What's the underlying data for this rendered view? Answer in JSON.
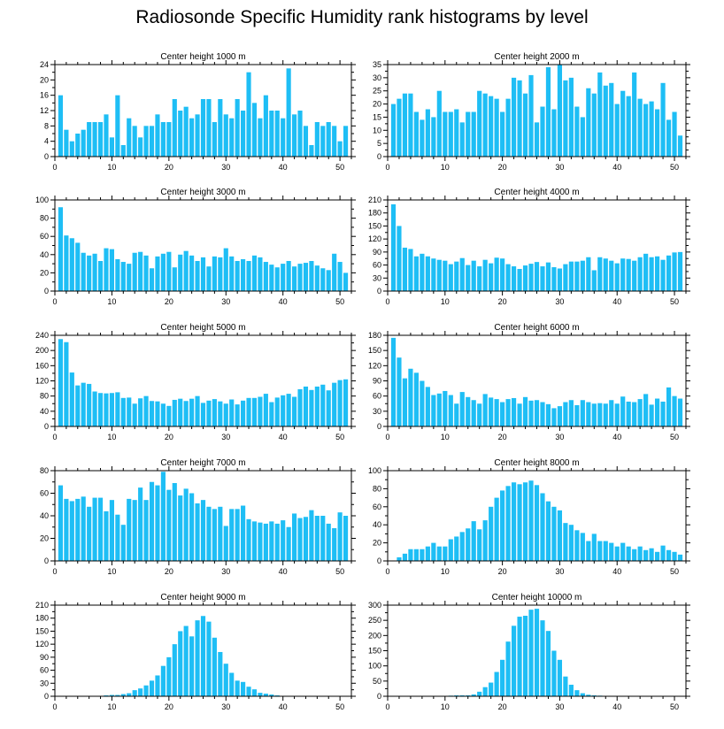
{
  "page_title": "Radiosonde Specific Humidity rank histograms by level",
  "colors": {
    "bar": "#1EBEF5",
    "axis": "#000000",
    "background": "#ffffff"
  },
  "chart_data": [
    {
      "type": "bar",
      "title": "Center height 1000 m",
      "xlabel": "",
      "ylabel": "",
      "xlim": [
        0,
        52
      ],
      "ylim": [
        0,
        24
      ],
      "xticks": [
        0,
        10,
        20,
        30,
        40,
        50
      ],
      "yticks": [
        0,
        4,
        8,
        12,
        16,
        20,
        24
      ],
      "x_start": 1,
      "values": [
        16,
        7,
        4,
        6,
        7,
        9,
        9,
        9,
        11,
        5,
        16,
        3,
        10,
        8,
        5,
        8,
        8,
        11,
        9,
        9,
        15,
        12,
        13,
        10,
        11,
        15,
        15,
        9,
        15,
        11,
        10,
        15,
        12,
        22,
        14,
        10,
        16,
        12,
        12,
        10,
        23,
        11,
        12,
        8,
        3,
        9,
        8,
        9,
        8,
        4,
        8
      ]
    },
    {
      "type": "bar",
      "title": "Center height 2000 m",
      "xlabel": "",
      "ylabel": "",
      "xlim": [
        0,
        52
      ],
      "ylim": [
        0,
        35
      ],
      "xticks": [
        0,
        10,
        20,
        30,
        40,
        50
      ],
      "yticks": [
        0,
        5,
        10,
        15,
        20,
        25,
        30,
        35
      ],
      "x_start": 1,
      "values": [
        20,
        22,
        24,
        24,
        17,
        14,
        18,
        15,
        25,
        17,
        17,
        18,
        13,
        17,
        17,
        25,
        24,
        23,
        22,
        17,
        22,
        30,
        29,
        24,
        31,
        13,
        19,
        34,
        18,
        35,
        29,
        30,
        19,
        15,
        26,
        24,
        32,
        27,
        28,
        20,
        25,
        23,
        32,
        22,
        20,
        21,
        18,
        28,
        14,
        17,
        8
      ]
    },
    {
      "type": "bar",
      "title": "Center height 3000 m",
      "xlabel": "",
      "ylabel": "",
      "xlim": [
        0,
        52
      ],
      "ylim": [
        0,
        100
      ],
      "xticks": [
        0,
        10,
        20,
        30,
        40,
        50
      ],
      "yticks": [
        0,
        20,
        40,
        60,
        80,
        100
      ],
      "x_start": 1,
      "values": [
        92,
        61,
        58,
        53,
        42,
        39,
        41,
        33,
        47,
        46,
        35,
        32,
        30,
        42,
        43,
        39,
        25,
        38,
        41,
        43,
        26,
        40,
        44,
        39,
        33,
        37,
        27,
        38,
        37,
        47,
        38,
        33,
        35,
        33,
        39,
        37,
        32,
        29,
        26,
        30,
        33,
        27,
        30,
        31,
        33,
        28,
        25,
        23,
        41,
        32,
        20
      ]
    },
    {
      "type": "bar",
      "title": "Center height 4000 m",
      "xlabel": "",
      "ylabel": "",
      "xlim": [
        0,
        52
      ],
      "ylim": [
        0,
        210
      ],
      "xticks": [
        0,
        10,
        20,
        30,
        40,
        50
      ],
      "yticks": [
        0,
        30,
        60,
        90,
        120,
        150,
        180,
        210
      ],
      "x_start": 1,
      "values": [
        200,
        150,
        100,
        97,
        80,
        86,
        80,
        75,
        72,
        70,
        62,
        68,
        76,
        60,
        70,
        57,
        72,
        64,
        77,
        75,
        62,
        57,
        51,
        59,
        63,
        67,
        57,
        66,
        55,
        52,
        62,
        68,
        68,
        70,
        78,
        48,
        78,
        75,
        70,
        64,
        75,
        74,
        70,
        78,
        86,
        78,
        80,
        72,
        82,
        89,
        90
      ]
    },
    {
      "type": "bar",
      "title": "Center height 5000 m",
      "xlabel": "",
      "ylabel": "",
      "xlim": [
        0,
        52
      ],
      "ylim": [
        0,
        240
      ],
      "xticks": [
        0,
        10,
        20,
        30,
        40,
        50
      ],
      "yticks": [
        0,
        40,
        80,
        120,
        160,
        200,
        240
      ],
      "x_start": 1,
      "values": [
        230,
        222,
        142,
        108,
        115,
        112,
        92,
        88,
        87,
        88,
        90,
        75,
        76,
        60,
        74,
        80,
        67,
        66,
        60,
        54,
        70,
        73,
        67,
        73,
        80,
        62,
        68,
        72,
        66,
        60,
        71,
        58,
        68,
        75,
        75,
        78,
        86,
        64,
        76,
        82,
        86,
        78,
        98,
        105,
        96,
        105,
        110,
        95,
        115,
        122,
        124
      ]
    },
    {
      "type": "bar",
      "title": "Center height 6000 m",
      "xlabel": "",
      "ylabel": "",
      "xlim": [
        0,
        52
      ],
      "ylim": [
        0,
        180
      ],
      "xticks": [
        0,
        10,
        20,
        30,
        40,
        50
      ],
      "yticks": [
        0,
        30,
        60,
        90,
        120,
        150,
        180
      ],
      "x_start": 1,
      "values": [
        175,
        136,
        95,
        114,
        106,
        90,
        78,
        62,
        65,
        70,
        62,
        45,
        68,
        58,
        52,
        45,
        64,
        57,
        54,
        48,
        54,
        56,
        45,
        58,
        51,
        52,
        48,
        44,
        36,
        40,
        48,
        52,
        42,
        52,
        48,
        45,
        46,
        45,
        52,
        45,
        59,
        49,
        48,
        54,
        64,
        43,
        55,
        49,
        77,
        60,
        55
      ]
    },
    {
      "type": "bar",
      "title": "Center height 7000 m",
      "xlabel": "",
      "ylabel": "",
      "xlim": [
        0,
        52
      ],
      "ylim": [
        0,
        80
      ],
      "xticks": [
        0,
        10,
        20,
        30,
        40,
        50
      ],
      "yticks": [
        0,
        20,
        40,
        60,
        80
      ],
      "x_start": 1,
      "values": [
        67,
        55,
        53,
        55,
        57,
        48,
        56,
        56,
        44,
        54,
        41,
        32,
        55,
        54,
        65,
        54,
        70,
        67,
        79,
        63,
        69,
        58,
        64,
        60,
        51,
        54,
        48,
        46,
        48,
        31,
        46,
        46,
        49,
        37,
        35,
        34,
        33,
        35,
        33,
        36,
        30,
        42,
        38,
        39,
        45,
        40,
        40,
        33,
        29,
        43,
        40
      ]
    },
    {
      "type": "bar",
      "title": "Center height 8000 m",
      "xlabel": "",
      "ylabel": "",
      "xlim": [
        0,
        52
      ],
      "ylim": [
        0,
        100
      ],
      "xticks": [
        0,
        10,
        20,
        30,
        40,
        50
      ],
      "yticks": [
        0,
        20,
        40,
        60,
        80,
        100
      ],
      "x_start": 1,
      "values": [
        0,
        4,
        8,
        13,
        13,
        13,
        16,
        20,
        16,
        16,
        24,
        27,
        32,
        36,
        44,
        35,
        45,
        60,
        70,
        78,
        83,
        87,
        85,
        87,
        89,
        84,
        75,
        66,
        60,
        56,
        42,
        40,
        34,
        31,
        22,
        30,
        22,
        22,
        20,
        16,
        20,
        16,
        13,
        16,
        12,
        14,
        10,
        17,
        12,
        10,
        7
      ]
    },
    {
      "type": "bar",
      "title": "Center height 9000 m",
      "xlabel": "",
      "ylabel": "",
      "xlim": [
        0,
        52
      ],
      "ylim": [
        0,
        210
      ],
      "xticks": [
        0,
        10,
        20,
        30,
        40,
        50
      ],
      "yticks": [
        0,
        30,
        60,
        90,
        120,
        150,
        180,
        210
      ],
      "x_start": 1,
      "values": [
        0,
        0,
        0,
        0,
        0,
        0,
        0,
        1,
        2,
        3,
        3,
        5,
        7,
        14,
        18,
        25,
        36,
        48,
        70,
        90,
        120,
        150,
        162,
        138,
        175,
        185,
        172,
        135,
        102,
        75,
        54,
        36,
        33,
        22,
        16,
        8,
        6,
        4,
        2,
        1,
        1,
        0,
        0,
        0,
        0,
        0,
        0,
        0,
        0,
        0,
        0
      ]
    },
    {
      "type": "bar",
      "title": "Center height 10000 m",
      "xlabel": "",
      "ylabel": "",
      "xlim": [
        0,
        52
      ],
      "ylim": [
        0,
        300
      ],
      "xticks": [
        0,
        10,
        20,
        30,
        40,
        50
      ],
      "yticks": [
        0,
        50,
        100,
        150,
        200,
        250,
        300
      ],
      "x_start": 1,
      "values": [
        0,
        0,
        0,
        0,
        0,
        0,
        0,
        0,
        0,
        1,
        2,
        3,
        3,
        3,
        6,
        15,
        30,
        45,
        80,
        120,
        180,
        232,
        262,
        265,
        285,
        288,
        250,
        215,
        150,
        120,
        65,
        38,
        20,
        10,
        5,
        3,
        2,
        1,
        1,
        0,
        0,
        0,
        0,
        0,
        0,
        0,
        0,
        0,
        0,
        0,
        0
      ]
    }
  ]
}
